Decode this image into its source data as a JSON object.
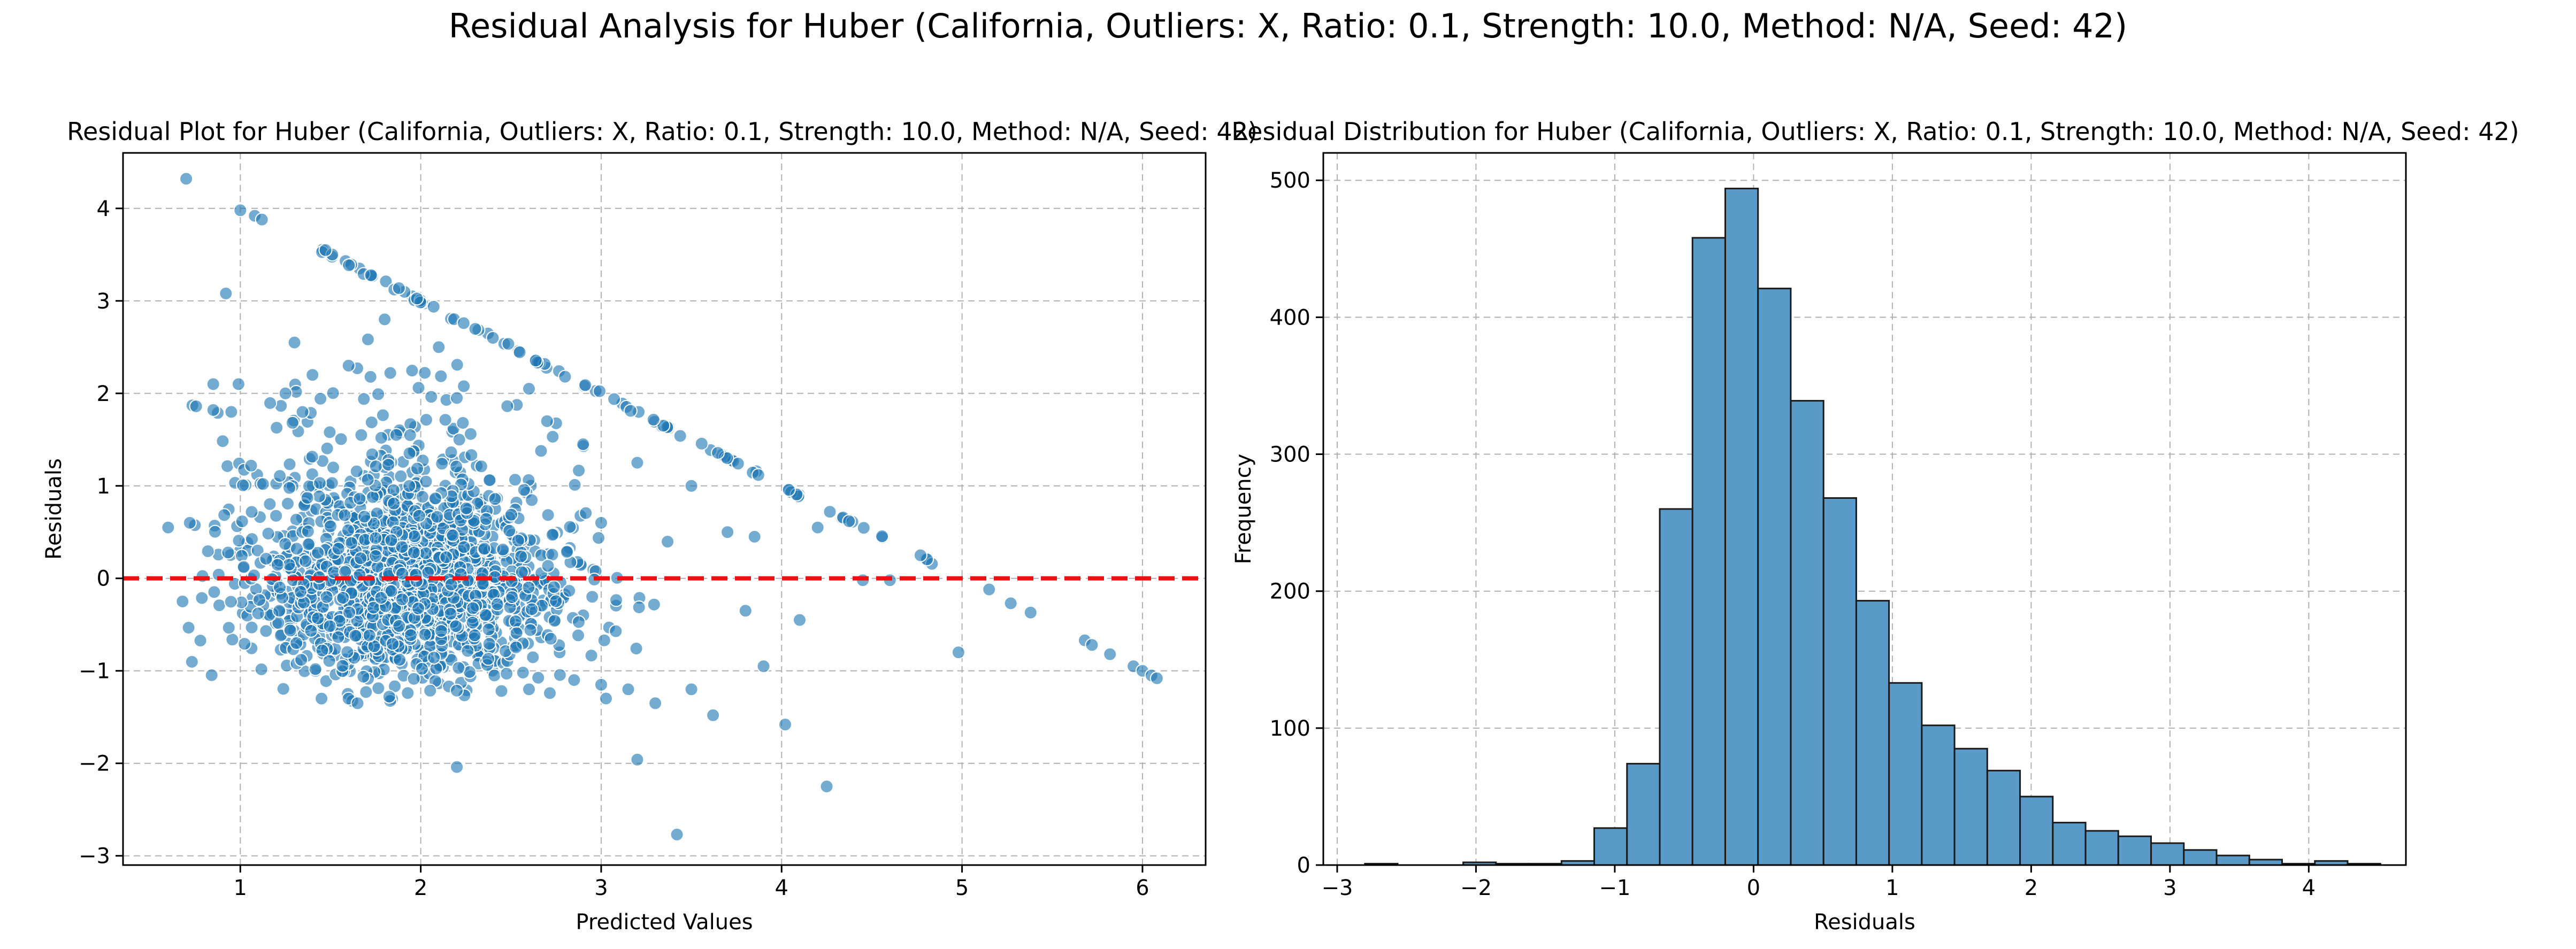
{
  "figure": {
    "suptitle": "Residual Analysis for Huber (California, Outliers: X, Ratio: 0.1, Strength: 10.0, Method: N/A, Seed: 42)"
  },
  "colors": {
    "points": "#1f77b4",
    "bars": "#5a9ac9",
    "zero_line": "#ee1111",
    "grid": "#b0b0b0"
  },
  "chart_data": [
    {
      "type": "scatter",
      "title": "Residual Plot for Huber (California, Outliers: X, Ratio: 0.1, Strength: 10.0, Method: N/A, Seed: 42)",
      "xlabel": "Predicted Values",
      "ylabel": "Residuals",
      "xlim": [
        0.35,
        6.35
      ],
      "ylim": [
        -3.1,
        4.6
      ],
      "xticks": [
        1,
        2,
        3,
        4,
        5,
        6
      ],
      "yticks": [
        -3,
        -2,
        -1,
        0,
        1,
        2,
        3,
        4
      ],
      "grid": true,
      "reference_line": {
        "y": 0,
        "style": "dashed",
        "color": "#ee1111"
      },
      "cluster": {
        "center_x": 1.9,
        "center_y": -0.15,
        "approx_points": 1600
      },
      "upper_boundary": {
        "from": [
          1.45,
          3.55
        ],
        "to": [
          4.95,
          0.05
        ]
      },
      "points": [
        [
          0.7,
          4.32
        ],
        [
          1.0,
          3.98
        ],
        [
          1.08,
          3.92
        ],
        [
          1.12,
          3.88
        ],
        [
          0.92,
          3.08
        ],
        [
          0.85,
          2.1
        ],
        [
          0.99,
          2.1
        ],
        [
          0.85,
          1.82
        ],
        [
          0.95,
          1.8
        ],
        [
          0.6,
          0.55
        ],
        [
          0.72,
          0.6
        ],
        [
          0.68,
          -0.25
        ],
        [
          1.45,
          -1.3
        ],
        [
          1.6,
          -1.3
        ],
        [
          1.65,
          -1.35
        ],
        [
          2.2,
          -2.04
        ],
        [
          3.2,
          -1.96
        ],
        [
          3.42,
          -2.77
        ],
        [
          4.25,
          -2.25
        ],
        [
          4.02,
          -1.58
        ],
        [
          3.62,
          -1.48
        ],
        [
          3.5,
          -1.2
        ],
        [
          3.15,
          -1.2
        ],
        [
          3.3,
          -1.35
        ],
        [
          3.9,
          -0.95
        ],
        [
          4.98,
          -0.8
        ],
        [
          4.45,
          -0.02
        ],
        [
          4.1,
          -0.45
        ],
        [
          5.15,
          -0.12
        ],
        [
          5.27,
          -0.27
        ],
        [
          5.38,
          -0.37
        ],
        [
          5.68,
          -0.67
        ],
        [
          5.72,
          -0.72
        ],
        [
          5.82,
          -0.82
        ],
        [
          5.95,
          -0.95
        ],
        [
          6.0,
          -1.0
        ],
        [
          6.05,
          -1.05
        ],
        [
          6.08,
          -1.08
        ],
        [
          3.0,
          -1.15
        ],
        [
          2.85,
          -1.1
        ],
        [
          2.6,
          -1.2
        ],
        [
          3.8,
          -0.35
        ],
        [
          4.6,
          -0.02
        ],
        [
          3.7,
          0.5
        ],
        [
          3.85,
          0.45
        ],
        [
          4.2,
          0.55
        ],
        [
          3.0,
          0.6
        ],
        [
          2.4,
          2.6
        ],
        [
          2.1,
          2.5
        ],
        [
          1.8,
          2.8
        ],
        [
          1.3,
          2.55
        ],
        [
          1.4,
          2.2
        ],
        [
          1.6,
          2.3
        ],
        [
          1.25,
          2.0
        ],
        [
          2.6,
          2.05
        ],
        [
          2.2,
          1.95
        ],
        [
          2.7,
          1.7
        ],
        [
          3.2,
          1.25
        ],
        [
          3.5,
          1.0
        ],
        [
          2.9,
          1.45
        ]
      ]
    },
    {
      "type": "bar",
      "subtype": "histogram",
      "title": "Residual Distribution for Huber (California, Outliers: X, Ratio: 0.1, Strength: 10.0, Method: N/A, Seed: 42)",
      "xlabel": "Residuals",
      "ylabel": "Frequency",
      "xlim": [
        -3.1,
        4.7
      ],
      "ylim": [
        0,
        520
      ],
      "xticks": [
        -3,
        -2,
        -1,
        0,
        1,
        2,
        3,
        4
      ],
      "yticks": [
        0,
        100,
        200,
        300,
        400,
        500
      ],
      "grid": true,
      "bin_width": 0.236,
      "bin_edges_start": -2.8,
      "values": [
        1,
        0,
        0,
        2,
        1,
        1,
        3,
        27,
        74,
        260,
        458,
        494,
        421,
        339,
        268,
        193,
        133,
        102,
        85,
        69,
        50,
        31,
        25,
        21,
        16,
        11,
        7,
        4,
        1,
        3,
        1
      ]
    }
  ]
}
